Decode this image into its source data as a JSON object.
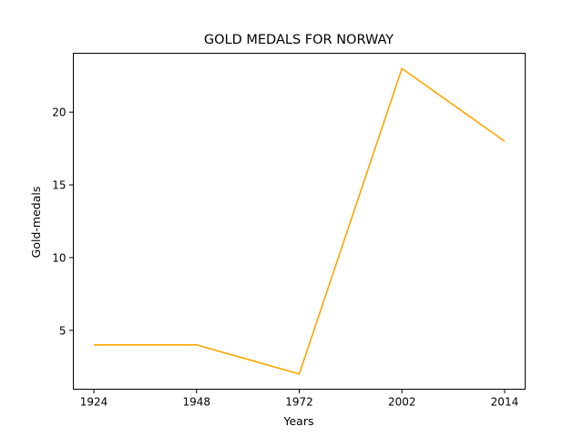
{
  "chart_data": {
    "type": "line",
    "title": "GOLD MEDALS FOR NORWAY",
    "xlabel": "Years",
    "ylabel": "Gold-medals",
    "categories": [
      "1924",
      "1948",
      "1972",
      "2002",
      "2014"
    ],
    "series": [
      {
        "values": [
          4,
          4,
          2,
          23,
          18
        ],
        "color": "#ffa500"
      }
    ],
    "ylim": [
      0.95,
      24.05
    ],
    "yticks": [
      5,
      10,
      15,
      20
    ],
    "grid": false,
    "legend": "none"
  }
}
